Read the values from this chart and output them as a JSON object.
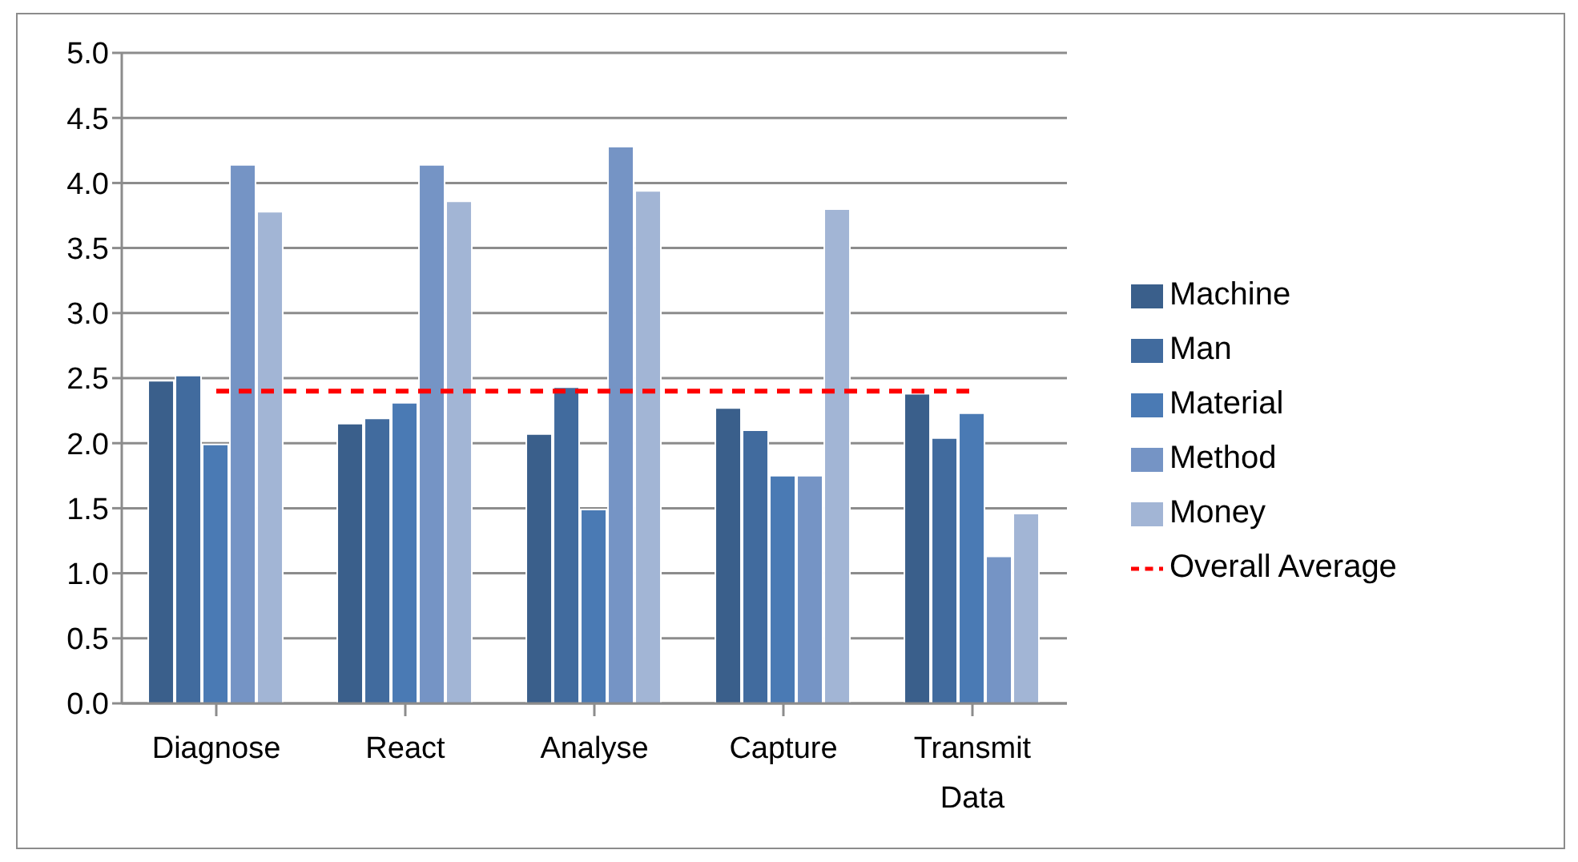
{
  "chart_data": {
    "type": "bar",
    "categories": [
      "Diagnose",
      "React",
      "Analyse",
      "Capture",
      "Transmit Data"
    ],
    "series": [
      {
        "name": "Machine",
        "color": "#3a5f8b",
        "values": [
          2.48,
          2.15,
          2.07,
          2.27,
          2.38
        ]
      },
      {
        "name": "Man",
        "color": "#416b9e",
        "values": [
          2.52,
          2.19,
          2.43,
          2.1,
          2.04
        ]
      },
      {
        "name": "Material",
        "color": "#4a7ab4",
        "values": [
          1.99,
          2.31,
          1.49,
          1.75,
          2.23
        ]
      },
      {
        "name": "Method",
        "color": "#7594c5",
        "values": [
          4.14,
          4.14,
          4.28,
          1.75,
          1.13
        ]
      },
      {
        "name": "Money",
        "color": "#a2b5d5",
        "values": [
          3.78,
          3.86,
          3.94,
          3.8,
          1.46
        ]
      },
      {
        "name": "Overall Average",
        "type": "line",
        "color": "#ff0000",
        "line_style": "dashed",
        "marker": "none",
        "values": [
          2.4,
          2.4,
          2.4,
          2.4,
          2.4
        ]
      }
    ],
    "ylim": [
      0,
      5
    ],
    "yticks": [
      {
        "value": 0,
        "label": "0.0"
      },
      0.5,
      {
        "value": 1,
        "label": "1.0"
      },
      1.5,
      {
        "value": 2,
        "label": "2.0"
      },
      2.5,
      {
        "value": 3,
        "label": "3.0"
      },
      3.5,
      {
        "value": 4,
        "label": "4.0"
      },
      4.5,
      {
        "value": 5,
        "label": "5.0"
      }
    ],
    "grid": "y",
    "legend": "right"
  }
}
